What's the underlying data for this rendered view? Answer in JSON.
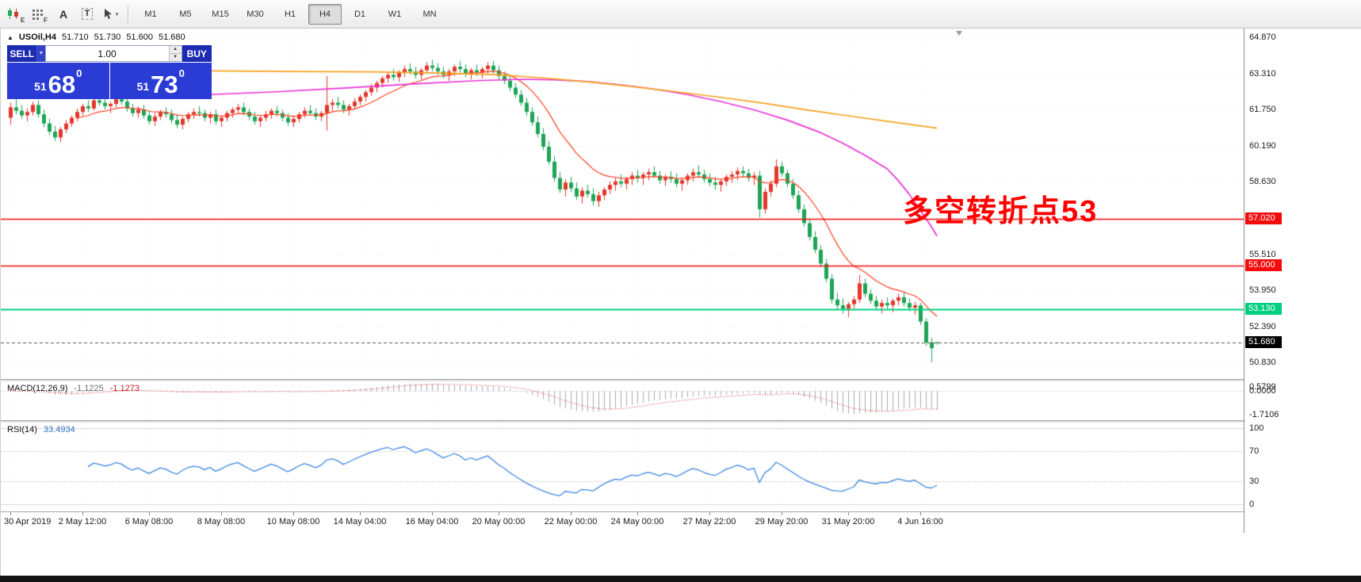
{
  "toolbar": {
    "style_tools": {
      "candle_sub": "E",
      "grid_sub": "F",
      "text_glyph": "A",
      "textbox_glyph": "T",
      "cursor_caret": "▾"
    },
    "timeframes": [
      "M1",
      "M5",
      "M15",
      "M30",
      "H1",
      "H4",
      "D1",
      "W1",
      "MN"
    ],
    "active_timeframe": "H4"
  },
  "header": {
    "marker": "▲",
    "symbol_tf": "USOil,H4",
    "open": "51.710",
    "high": "51.730",
    "low": "51.600",
    "close": "51.680"
  },
  "trade_panel": {
    "sell_label": "SELL",
    "buy_label": "BUY",
    "volume": "1.00",
    "dropdown_caret": "▼",
    "spinner_up": "▲",
    "spinner_down": "▼",
    "sell_price": {
      "prefix": "51",
      "big": "68",
      "pip": "0"
    },
    "buy_price": {
      "prefix": "51",
      "big": "73",
      "pip": "0"
    }
  },
  "annotation": {
    "text": "多空转折点53",
    "color": "#ff0000"
  },
  "indicator_labels": {
    "macd": "MACD(12,26,9)",
    "macd_main": "-1.1225",
    "macd_signal": "-1.1273",
    "rsi": "RSI(14)",
    "rsi_value": "33.4934"
  },
  "chart_data": {
    "type": "candlestick",
    "symbol": "USOil",
    "timeframe": "H4",
    "colors": {
      "up": "#e3372b",
      "down": "#1ea555",
      "orange": "#f5a31d",
      "magenta": "#ea33d4",
      "fast": "#ff3f21",
      "rsi": "#3d87e0",
      "macd_hist": "#ababab",
      "macd_signal": "#dd2222",
      "grid": "#ebebeb",
      "bid_line": "#555555"
    },
    "candles": [
      [
        61.4,
        62.05,
        61.1,
        61.85
      ],
      [
        61.85,
        62.2,
        61.55,
        61.7
      ],
      [
        61.7,
        61.95,
        61.35,
        61.5
      ],
      [
        61.5,
        61.8,
        61.25,
        61.65
      ],
      [
        61.65,
        62.1,
        61.5,
        61.95
      ],
      [
        61.95,
        62.15,
        61.4,
        61.55
      ],
      [
        61.55,
        61.75,
        61.0,
        61.15
      ],
      [
        61.15,
        61.35,
        60.65,
        60.8
      ],
      [
        60.8,
        61.05,
        60.4,
        60.55
      ],
      [
        60.55,
        61.0,
        60.35,
        60.9
      ],
      [
        60.9,
        61.3,
        60.75,
        61.15
      ],
      [
        61.15,
        61.5,
        61.0,
        61.4
      ],
      [
        61.4,
        61.8,
        61.25,
        61.65
      ],
      [
        61.65,
        62.0,
        61.5,
        61.9
      ],
      [
        61.9,
        62.15,
        61.65,
        61.8
      ],
      [
        61.8,
        62.3,
        61.7,
        62.15
      ],
      [
        62.15,
        62.4,
        61.9,
        62.05
      ],
      [
        62.05,
        62.25,
        61.75,
        61.9
      ],
      [
        61.9,
        62.1,
        61.6,
        62.0
      ],
      [
        62.0,
        62.35,
        61.85,
        62.2
      ],
      [
        62.2,
        62.45,
        61.95,
        62.1
      ],
      [
        62.1,
        62.25,
        61.65,
        61.8
      ],
      [
        61.8,
        62.0,
        61.45,
        61.6
      ],
      [
        61.6,
        61.9,
        61.4,
        61.75
      ],
      [
        61.75,
        61.95,
        61.35,
        61.5
      ],
      [
        61.5,
        61.7,
        61.1,
        61.25
      ],
      [
        61.25,
        61.6,
        61.05,
        61.45
      ],
      [
        61.45,
        61.75,
        61.3,
        61.65
      ],
      [
        61.65,
        61.85,
        61.4,
        61.55
      ],
      [
        61.55,
        61.75,
        61.15,
        61.3
      ],
      [
        61.3,
        61.55,
        60.95,
        61.1
      ],
      [
        61.1,
        61.45,
        60.9,
        61.35
      ],
      [
        61.35,
        61.65,
        61.2,
        61.55
      ],
      [
        61.55,
        61.8,
        61.35,
        61.65
      ],
      [
        61.65,
        61.9,
        61.45,
        61.6
      ],
      [
        61.6,
        61.75,
        61.25,
        61.4
      ],
      [
        61.4,
        61.65,
        61.15,
        61.55
      ],
      [
        61.55,
        61.75,
        61.1,
        61.25
      ],
      [
        61.25,
        61.5,
        61.0,
        61.4
      ],
      [
        61.4,
        61.7,
        61.25,
        61.6
      ],
      [
        61.6,
        61.85,
        61.4,
        61.75
      ],
      [
        61.75,
        62.0,
        61.55,
        61.85
      ],
      [
        61.85,
        62.05,
        61.5,
        61.65
      ],
      [
        61.65,
        61.8,
        61.3,
        61.45
      ],
      [
        61.45,
        61.65,
        61.1,
        61.25
      ],
      [
        61.25,
        61.5,
        61.0,
        61.4
      ],
      [
        61.4,
        61.7,
        61.25,
        61.55
      ],
      [
        61.55,
        61.8,
        61.35,
        61.7
      ],
      [
        61.7,
        61.9,
        61.45,
        61.6
      ],
      [
        61.6,
        61.75,
        61.25,
        61.4
      ],
      [
        61.4,
        61.6,
        61.05,
        61.2
      ],
      [
        61.2,
        61.5,
        61.0,
        61.35
      ],
      [
        61.35,
        61.65,
        61.2,
        61.55
      ],
      [
        61.55,
        61.85,
        61.4,
        61.7
      ],
      [
        61.7,
        61.95,
        61.5,
        61.6
      ],
      [
        61.6,
        61.8,
        61.3,
        61.45
      ],
      [
        61.45,
        61.7,
        61.25,
        61.6
      ],
      [
        61.6,
        63.2,
        60.85,
        61.95
      ],
      [
        61.95,
        62.2,
        61.7,
        62.05
      ],
      [
        62.05,
        62.3,
        61.8,
        61.95
      ],
      [
        61.95,
        62.15,
        61.6,
        61.75
      ],
      [
        61.75,
        62.0,
        61.5,
        61.9
      ],
      [
        61.9,
        62.25,
        61.75,
        62.1
      ],
      [
        62.1,
        62.4,
        61.95,
        62.3
      ],
      [
        62.3,
        62.6,
        62.1,
        62.5
      ],
      [
        62.5,
        62.85,
        62.35,
        62.7
      ],
      [
        62.7,
        63.0,
        62.5,
        62.9
      ],
      [
        62.9,
        63.2,
        62.7,
        63.1
      ],
      [
        63.1,
        63.4,
        62.9,
        63.25
      ],
      [
        63.25,
        63.5,
        63.0,
        63.15
      ],
      [
        63.15,
        63.45,
        62.95,
        63.35
      ],
      [
        63.35,
        63.65,
        63.15,
        63.5
      ],
      [
        63.5,
        63.75,
        63.25,
        63.4
      ],
      [
        63.4,
        63.6,
        63.1,
        63.25
      ],
      [
        63.25,
        63.55,
        63.05,
        63.45
      ],
      [
        63.45,
        63.8,
        63.3,
        63.65
      ],
      [
        63.65,
        63.9,
        63.4,
        63.55
      ],
      [
        63.55,
        63.75,
        63.25,
        63.4
      ],
      [
        63.4,
        63.6,
        63.1,
        63.25
      ],
      [
        63.25,
        63.5,
        63.0,
        63.4
      ],
      [
        63.4,
        63.7,
        63.2,
        63.6
      ],
      [
        63.6,
        63.85,
        63.35,
        63.5
      ],
      [
        63.5,
        63.7,
        63.15,
        63.3
      ],
      [
        63.3,
        63.55,
        63.05,
        63.45
      ],
      [
        63.45,
        63.7,
        63.2,
        63.35
      ],
      [
        63.35,
        63.6,
        63.1,
        63.5
      ],
      [
        63.5,
        63.8,
        63.3,
        63.65
      ],
      [
        63.65,
        63.85,
        63.3,
        63.45
      ],
      [
        63.45,
        63.65,
        63.05,
        63.2
      ],
      [
        63.2,
        63.4,
        62.85,
        63.0
      ],
      [
        63.0,
        63.2,
        62.55,
        62.7
      ],
      [
        62.7,
        62.9,
        62.25,
        62.4
      ],
      [
        62.4,
        62.6,
        61.9,
        62.05
      ],
      [
        62.05,
        62.25,
        61.5,
        61.65
      ],
      [
        61.65,
        61.85,
        61.05,
        61.2
      ],
      [
        61.2,
        61.45,
        60.55,
        60.7
      ],
      [
        60.7,
        60.95,
        60.0,
        60.15
      ],
      [
        60.15,
        60.4,
        59.35,
        59.5
      ],
      [
        59.5,
        59.75,
        58.65,
        58.8
      ],
      [
        58.8,
        59.05,
        58.15,
        58.3
      ],
      [
        58.3,
        58.75,
        58.0,
        58.6
      ],
      [
        58.6,
        58.85,
        58.2,
        58.35
      ],
      [
        58.35,
        58.6,
        57.85,
        58.0
      ],
      [
        58.0,
        58.4,
        57.7,
        58.25
      ],
      [
        58.25,
        58.5,
        57.95,
        58.1
      ],
      [
        58.1,
        58.35,
        57.6,
        57.8
      ],
      [
        57.8,
        58.2,
        57.55,
        58.05
      ],
      [
        58.05,
        58.4,
        57.85,
        58.3
      ],
      [
        58.3,
        58.65,
        58.1,
        58.5
      ],
      [
        58.5,
        58.8,
        58.25,
        58.65
      ],
      [
        58.65,
        58.95,
        58.4,
        58.55
      ],
      [
        58.55,
        58.85,
        58.3,
        58.75
      ],
      [
        58.75,
        59.05,
        58.5,
        58.9
      ],
      [
        58.9,
        59.15,
        58.6,
        58.8
      ],
      [
        58.8,
        59.05,
        58.5,
        58.95
      ],
      [
        58.95,
        59.2,
        58.7,
        59.05
      ],
      [
        59.05,
        59.3,
        58.8,
        58.9
      ],
      [
        58.9,
        59.1,
        58.55,
        58.7
      ],
      [
        58.7,
        58.95,
        58.45,
        58.85
      ],
      [
        58.85,
        59.1,
        58.6,
        58.75
      ],
      [
        58.75,
        59.0,
        58.4,
        58.55
      ],
      [
        58.55,
        58.8,
        58.25,
        58.7
      ],
      [
        58.7,
        59.0,
        58.5,
        58.9
      ],
      [
        58.9,
        59.2,
        58.65,
        59.05
      ],
      [
        59.05,
        59.35,
        58.8,
        58.95
      ],
      [
        58.95,
        59.15,
        58.6,
        58.75
      ],
      [
        58.75,
        59.0,
        58.45,
        58.6
      ],
      [
        58.6,
        58.85,
        58.3,
        58.5
      ],
      [
        58.5,
        58.75,
        58.2,
        58.65
      ],
      [
        58.65,
        58.95,
        58.45,
        58.85
      ],
      [
        58.85,
        59.1,
        58.6,
        58.95
      ],
      [
        58.95,
        59.25,
        58.7,
        59.1
      ],
      [
        59.1,
        59.3,
        58.85,
        59.0
      ],
      [
        59.0,
        59.2,
        58.65,
        58.8
      ],
      [
        58.8,
        59.05,
        58.5,
        58.9
      ],
      [
        58.9,
        59.1,
        57.1,
        57.45
      ],
      [
        57.45,
        58.35,
        57.25,
        58.2
      ],
      [
        58.2,
        58.7,
        58.0,
        58.55
      ],
      [
        58.55,
        59.6,
        58.4,
        59.3
      ],
      [
        59.3,
        59.5,
        58.85,
        59.0
      ],
      [
        59.0,
        59.15,
        58.4,
        58.55
      ],
      [
        58.55,
        58.75,
        57.9,
        58.05
      ],
      [
        58.05,
        58.25,
        57.3,
        57.45
      ],
      [
        57.45,
        57.65,
        56.7,
        56.85
      ],
      [
        56.85,
        57.05,
        56.1,
        56.25
      ],
      [
        56.25,
        56.5,
        55.55,
        55.7
      ],
      [
        55.7,
        55.9,
        54.95,
        55.1
      ],
      [
        55.1,
        55.3,
        54.3,
        54.45
      ],
      [
        54.45,
        54.65,
        53.4,
        53.55
      ],
      [
        53.55,
        53.85,
        53.1,
        53.3
      ],
      [
        53.3,
        53.6,
        52.95,
        53.15
      ],
      [
        53.15,
        53.45,
        52.8,
        53.35
      ],
      [
        53.35,
        53.7,
        53.15,
        53.55
      ],
      [
        53.55,
        54.6,
        53.4,
        54.25
      ],
      [
        54.25,
        54.45,
        53.65,
        53.8
      ],
      [
        53.8,
        54.0,
        53.35,
        53.5
      ],
      [
        53.5,
        53.7,
        53.1,
        53.25
      ],
      [
        53.25,
        53.55,
        52.95,
        53.4
      ],
      [
        53.4,
        53.65,
        53.15,
        53.3
      ],
      [
        53.3,
        53.6,
        53.0,
        53.5
      ],
      [
        53.5,
        53.8,
        53.3,
        53.65
      ],
      [
        53.65,
        53.85,
        53.25,
        53.4
      ],
      [
        53.4,
        53.6,
        53.05,
        53.2
      ],
      [
        53.2,
        53.45,
        52.9,
        53.3
      ],
      [
        53.3,
        53.4,
        52.45,
        52.6
      ],
      [
        52.6,
        52.75,
        51.55,
        51.7
      ],
      [
        51.7,
        51.9,
        50.85,
        51.45
      ],
      [
        51.71,
        51.73,
        51.6,
        51.68
      ]
    ],
    "y_axis": {
      "max": 65.25,
      "min": 50.12,
      "grid": [
        64.87,
        63.31,
        61.75,
        60.19,
        58.63,
        57.07,
        55.51,
        53.95,
        52.39,
        50.83
      ],
      "ticks": [
        {
          "label": "64.870",
          "value": 64.87
        },
        {
          "label": "63.310",
          "value": 63.31
        },
        {
          "label": "61.750",
          "value": 61.75
        },
        {
          "label": "60.190",
          "value": 60.19
        },
        {
          "label": "58.630",
          "value": 58.63
        },
        {
          "label": "55.510",
          "value": 55.51
        },
        {
          "label": "53.950",
          "value": 53.95
        },
        {
          "label": "52.390",
          "value": 52.39
        },
        {
          "label": "50.830",
          "value": 50.83
        }
      ]
    },
    "levels": [
      {
        "label": "57.020",
        "price": 57.02,
        "color": "#f20c0c",
        "width": 1.4,
        "kind": "resistance"
      },
      {
        "label": "55.000",
        "price": 55.0,
        "color": "#f20c0c",
        "width": 1.4,
        "kind": "resistance"
      },
      {
        "label": "53.130",
        "price": 53.13,
        "color": "#00cf80",
        "width": 2,
        "kind": "support"
      },
      {
        "label": "51.680",
        "price": 51.68,
        "color": "#000000",
        "width": 1,
        "kind": "bid",
        "style": "dashed"
      }
    ],
    "overlays": {
      "fast": {
        "type": "ema",
        "period": 13
      },
      "slow_magenta": {
        "points": [
          [
            36,
            62.4
          ],
          [
            48,
            62.52
          ],
          [
            60,
            62.68
          ],
          [
            72,
            62.85
          ],
          [
            84,
            63.0
          ],
          [
            92,
            63.06
          ],
          [
            98,
            63.04
          ],
          [
            104,
            62.96
          ],
          [
            110,
            62.82
          ],
          [
            116,
            62.64
          ],
          [
            122,
            62.4
          ],
          [
            128,
            62.1
          ],
          [
            134,
            61.74
          ],
          [
            140,
            61.3
          ],
          [
            146,
            60.76
          ],
          [
            150,
            60.3
          ],
          [
            154,
            59.78
          ],
          [
            158,
            59.2
          ],
          [
            160,
            58.7
          ],
          [
            162,
            58.1
          ],
          [
            164,
            57.4
          ],
          [
            166,
            56.7
          ],
          [
            167,
            56.3
          ]
        ]
      },
      "slow_orange": {
        "points": [
          [
            36,
            63.42
          ],
          [
            50,
            63.4
          ],
          [
            65,
            63.38
          ],
          [
            78,
            63.33
          ],
          [
            88,
            63.25
          ],
          [
            96,
            63.12
          ],
          [
            104,
            62.95
          ],
          [
            112,
            62.75
          ],
          [
            120,
            62.52
          ],
          [
            128,
            62.28
          ],
          [
            136,
            62.02
          ],
          [
            144,
            61.72
          ],
          [
            152,
            61.45
          ],
          [
            160,
            61.18
          ],
          [
            167,
            60.95
          ]
        ]
      }
    },
    "x_labels": [
      {
        "label": "30 Apr 2019",
        "bar": 0
      },
      {
        "label": "2 May 12:00",
        "bar": 13
      },
      {
        "label": "6 May 08:00",
        "bar": 25
      },
      {
        "label": "8 May 08:00",
        "bar": 38
      },
      {
        "label": "10 May 08:00",
        "bar": 51
      },
      {
        "label": "14 May 04:00",
        "bar": 63
      },
      {
        "label": "16 May 04:00",
        "bar": 76
      },
      {
        "label": "20 May 00:00",
        "bar": 88
      },
      {
        "label": "22 May 00:00",
        "bar": 101
      },
      {
        "label": "24 May 00:00",
        "bar": 113
      },
      {
        "label": "27 May 22:00",
        "bar": 126
      },
      {
        "label": "29 May 20:00",
        "bar": 139
      },
      {
        "label": "31 May 20:00",
        "bar": 151
      },
      {
        "label": "4 Jun 16:00",
        "bar": 164
      }
    ],
    "macd": {
      "params": [
        12,
        26,
        9
      ],
      "range": [
        -1.85,
        0.62
      ],
      "scale": [
        {
          "label": "0.5799",
          "value": 0.5799
        },
        {
          "label": "0.0000",
          "value": 0
        },
        {
          "label": "-1.7106",
          "value": -1.7106
        }
      ]
    },
    "rsi": {
      "period": 14,
      "levels": [
        70,
        30
      ],
      "scale": [
        {
          "label": "100",
          "value": 100
        },
        {
          "label": "70",
          "value": 70
        },
        {
          "label": "30",
          "value": 30
        },
        {
          "label": "0",
          "value": 0
        }
      ]
    }
  }
}
